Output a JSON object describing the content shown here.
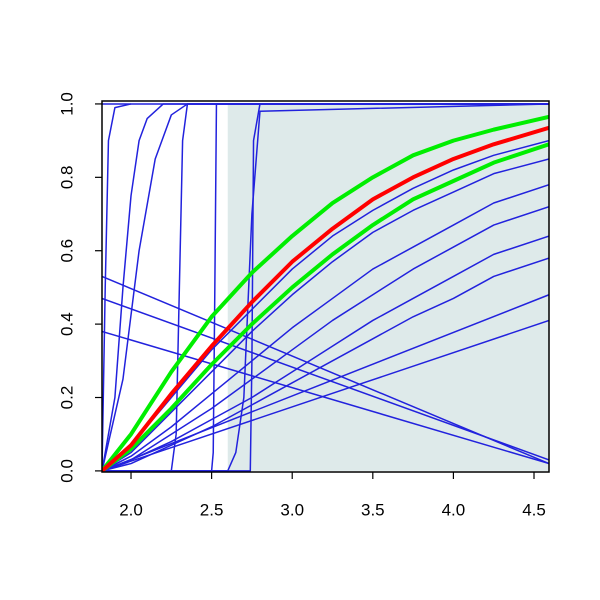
{
  "chart_data": {
    "type": "line",
    "xlim": [
      1.82,
      4.593
    ],
    "ylim": [
      -0.003,
      1.008
    ],
    "xticks": [
      {
        "value": 2.0,
        "label": "2.0"
      },
      {
        "value": 2.5,
        "label": "2.5"
      },
      {
        "value": 3.0,
        "label": "3.0"
      },
      {
        "value": 3.5,
        "label": "3.5"
      },
      {
        "value": 4.0,
        "label": "4.0"
      },
      {
        "value": 4.5,
        "label": "4.5"
      }
    ],
    "yticks": [
      {
        "value": 0.0,
        "label": "0.0"
      },
      {
        "value": 0.2,
        "label": "0.2"
      },
      {
        "value": 0.4,
        "label": "0.4"
      },
      {
        "value": 0.6,
        "label": "0.6"
      },
      {
        "value": 0.8,
        "label": "0.8"
      },
      {
        "value": 1.0,
        "label": "1.0"
      }
    ],
    "shade": {
      "x": [
        2.6,
        4.593
      ],
      "y": [
        0,
        1
      ],
      "color": "#deeaea"
    },
    "series": [
      {
        "color": "#2222dd",
        "lwd": 1.5,
        "x": [
          1.82,
          4.593
        ],
        "values": [
          1,
          1
        ]
      },
      {
        "color": "#2222dd",
        "lwd": 1.5,
        "x": [
          1.82,
          1.84,
          1.86,
          1.9,
          2.0
        ],
        "values": [
          0,
          0.5,
          0.9,
          0.99,
          1
        ]
      },
      {
        "color": "#2222dd",
        "lwd": 1.5,
        "x": [
          1.82,
          1.9,
          1.95,
          2.0,
          2.05,
          2.1,
          2.2,
          4.593
        ],
        "values": [
          0,
          0.2,
          0.5,
          0.75,
          0.9,
          0.96,
          1,
          1
        ]
      },
      {
        "color": "#2222dd",
        "lwd": 1.5,
        "x": [
          1.82,
          1.95,
          2.05,
          2.15,
          2.25,
          2.35,
          4.593
        ],
        "values": [
          0,
          0.25,
          0.6,
          0.85,
          0.97,
          1,
          1
        ]
      },
      {
        "color": "#2222dd",
        "lwd": 1.5,
        "x": [
          1.82,
          2.25,
          2.28,
          2.3,
          2.32,
          2.35,
          4.593
        ],
        "values": [
          0,
          0,
          0.1,
          0.5,
          0.9,
          1,
          1
        ]
      },
      {
        "color": "#2222dd",
        "lwd": 1.5,
        "x": [
          1.82,
          2.5,
          2.51,
          2.52,
          2.53,
          4.593
        ],
        "values": [
          0,
          0,
          0.05,
          0.5,
          1,
          1
        ]
      },
      {
        "color": "#2222dd",
        "lwd": 1.5,
        "x": [
          1.82,
          2.6,
          2.65,
          2.7,
          2.75,
          2.8,
          4.593
        ],
        "values": [
          0,
          0,
          0.05,
          0.2,
          0.7,
          0.98,
          1
        ]
      },
      {
        "color": "#2222dd",
        "lwd": 1.5,
        "x": [
          1.82,
          2.74,
          2.75,
          2.76,
          2.8,
          4.593
        ],
        "values": [
          0,
          0,
          0.3,
          0.9,
          1,
          1
        ]
      },
      {
        "color": "#2222dd",
        "lwd": 1.5,
        "x": [
          1.82,
          4.593
        ],
        "values": [
          0.53,
          0.02
        ]
      },
      {
        "color": "#2222dd",
        "lwd": 1.5,
        "x": [
          1.82,
          4.593
        ],
        "values": [
          0.47,
          0.03
        ]
      },
      {
        "color": "#2222dd",
        "lwd": 1.5,
        "x": [
          1.82,
          4.593
        ],
        "values": [
          0.38,
          0.02
        ]
      },
      {
        "color": "#2222dd",
        "lwd": 1.5,
        "x": [
          1.82,
          4.593
        ],
        "values": [
          0,
          0.48
        ]
      },
      {
        "color": "#2222dd",
        "lwd": 1.5,
        "x": [
          1.82,
          4.593
        ],
        "values": [
          0,
          0.41
        ]
      },
      {
        "color": "#2222dd",
        "lwd": 1.5,
        "x": [
          1.82,
          2.0,
          2.25,
          2.5,
          2.75,
          3.0,
          3.25,
          3.5,
          3.75,
          4.0,
          4.25,
          4.593
        ],
        "values": [
          0,
          0.07,
          0.2,
          0.33,
          0.44,
          0.55,
          0.64,
          0.71,
          0.77,
          0.82,
          0.86,
          0.9
        ]
      },
      {
        "color": "#2222dd",
        "lwd": 1.5,
        "x": [
          1.82,
          2.0,
          2.25,
          2.5,
          2.75,
          3.0,
          3.25,
          3.5,
          3.75,
          4.0,
          4.25,
          4.593
        ],
        "values": [
          0,
          0.05,
          0.16,
          0.27,
          0.38,
          0.48,
          0.57,
          0.65,
          0.71,
          0.76,
          0.81,
          0.85
        ]
      },
      {
        "color": "#2222dd",
        "lwd": 1.5,
        "x": [
          1.82,
          2.0,
          2.25,
          2.5,
          2.75,
          3.0,
          3.25,
          3.5,
          3.75,
          4.0,
          4.25,
          4.593
        ],
        "values": [
          0,
          0.04,
          0.12,
          0.21,
          0.3,
          0.39,
          0.47,
          0.55,
          0.61,
          0.67,
          0.73,
          0.78
        ]
      },
      {
        "color": "#2222dd",
        "lwd": 1.5,
        "x": [
          1.82,
          2.0,
          2.25,
          2.5,
          2.75,
          3.0,
          3.25,
          3.5,
          3.75,
          4.0,
          4.25,
          4.593
        ],
        "values": [
          0,
          0.03,
          0.1,
          0.17,
          0.25,
          0.33,
          0.41,
          0.48,
          0.55,
          0.61,
          0.67,
          0.72
        ]
      },
      {
        "color": "#2222dd",
        "lwd": 1.5,
        "x": [
          1.82,
          2.0,
          2.25,
          2.5,
          2.75,
          3.0,
          3.25,
          3.5,
          3.75,
          4.0,
          4.25,
          4.593
        ],
        "values": [
          0,
          0.03,
          0.08,
          0.14,
          0.2,
          0.27,
          0.34,
          0.41,
          0.47,
          0.53,
          0.59,
          0.64
        ]
      },
      {
        "color": "#2222dd",
        "lwd": 1.5,
        "x": [
          1.82,
          2.0,
          2.25,
          2.5,
          2.75,
          3.0,
          3.25,
          3.5,
          3.75,
          4.0,
          4.25,
          4.593
        ],
        "values": [
          0,
          0.02,
          0.07,
          0.12,
          0.18,
          0.24,
          0.3,
          0.36,
          0.42,
          0.47,
          0.53,
          0.58
        ]
      },
      {
        "color": "#00ee00",
        "lwd": 4,
        "x": [
          1.82,
          2.0,
          2.25,
          2.5,
          2.75,
          3.0,
          3.25,
          3.5,
          3.75,
          4.0,
          4.25,
          4.593
        ],
        "values": [
          0,
          0.1,
          0.27,
          0.42,
          0.54,
          0.64,
          0.73,
          0.8,
          0.86,
          0.9,
          0.93,
          0.965
        ]
      },
      {
        "color": "#00ee00",
        "lwd": 4,
        "x": [
          1.82,
          2.0,
          2.25,
          2.5,
          2.75,
          3.0,
          3.25,
          3.5,
          3.75,
          4.0,
          4.25,
          4.593
        ],
        "values": [
          0,
          0.06,
          0.17,
          0.29,
          0.4,
          0.5,
          0.59,
          0.67,
          0.74,
          0.79,
          0.84,
          0.89
        ]
      },
      {
        "color": "#ff0000",
        "lwd": 4,
        "x": [
          1.82,
          2.0,
          2.25,
          2.5,
          2.75,
          3.0,
          3.25,
          3.5,
          3.75,
          4.0,
          4.25,
          4.593
        ],
        "values": [
          0,
          0.07,
          0.21,
          0.34,
          0.46,
          0.57,
          0.66,
          0.74,
          0.8,
          0.85,
          0.89,
          0.935
        ]
      }
    ]
  }
}
